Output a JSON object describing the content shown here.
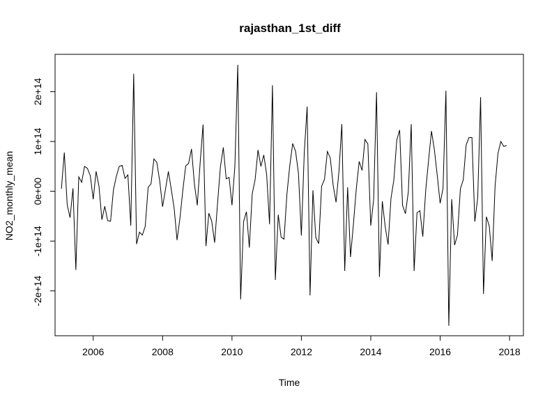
{
  "chart_data": {
    "type": "line",
    "title": "rajasthan_1st_diff",
    "xlabel": "Time",
    "ylabel": "NO2_monthly_mean",
    "xlim": [
      2004.9,
      2018.4
    ],
    "ylim": [
      -290000000000000.0,
      275000000000000.0
    ],
    "grid": false,
    "legend": "none",
    "x_ticks": [
      {
        "value": 2006,
        "label": "2006"
      },
      {
        "value": 2008,
        "label": "2008"
      },
      {
        "value": 2010,
        "label": "2010"
      },
      {
        "value": 2012,
        "label": "2012"
      },
      {
        "value": 2014,
        "label": "2014"
      },
      {
        "value": 2016,
        "label": "2016"
      },
      {
        "value": 2018,
        "label": "2018"
      }
    ],
    "y_ticks": [
      {
        "value": -200000000000000.0,
        "label": "-2e+14"
      },
      {
        "value": -100000000000000.0,
        "label": "-1e+14"
      },
      {
        "value": 0,
        "label": "0e+00"
      },
      {
        "value": 100000000000000.0,
        "label": "1e+14"
      },
      {
        "value": 200000000000000.0,
        "label": "2e+14"
      }
    ],
    "x_start": 2005.083,
    "x_step": 0.08333,
    "series": [
      {
        "color": "#000000",
        "values": [
          5000000000000.0,
          78000000000000.0,
          -27000000000000.0,
          -53000000000000.0,
          6000000000000.0,
          -158000000000000.0,
          29000000000000.0,
          18000000000000.0,
          50000000000000.0,
          46000000000000.0,
          31000000000000.0,
          -16000000000000.0,
          40000000000000.0,
          10000000000000.0,
          -57000000000000.0,
          -30000000000000.0,
          -59000000000000.0,
          -60000000000000.0,
          3000000000000.0,
          30000000000000.0,
          50000000000000.0,
          52000000000000.0,
          26000000000000.0,
          33000000000000.0,
          -69000000000000.0,
          236000000000000.0,
          -106000000000000.0,
          -82000000000000.0,
          -88000000000000.0,
          -70000000000000.0,
          8000000000000.0,
          15000000000000.0,
          65000000000000.0,
          58000000000000.0,
          21000000000000.0,
          -31000000000000.0,
          4000000000000.0,
          40000000000000.0,
          4000000000000.0,
          -34000000000000.0,
          -98000000000000.0,
          -54000000000000.0,
          2000000000000.0,
          51000000000000.0,
          56000000000000.0,
          85000000000000.0,
          15000000000000.0,
          -28000000000000.0,
          58000000000000.0,
          134000000000000.0,
          -110000000000000.0,
          -44000000000000.0,
          -60000000000000.0,
          -103000000000000.0,
          -25000000000000.0,
          49000000000000.0,
          88000000000000.0,
          25000000000000.0,
          28000000000000.0,
          -28000000000000.0,
          50000000000000.0,
          254000000000000.0,
          -217000000000000.0,
          -61000000000000.0,
          -41000000000000.0,
          -113000000000000.0,
          -5000000000000.0,
          23000000000000.0,
          83000000000000.0,
          50000000000000.0,
          73000000000000.0,
          33000000000000.0,
          -66000000000000.0,
          213000000000000.0,
          -178000000000000.0,
          -47000000000000.0,
          -92000000000000.0,
          -96000000000000.0,
          -6000000000000.0,
          52000000000000.0,
          96000000000000.0,
          80000000000000.0,
          36000000000000.0,
          -89000000000000.0,
          77000000000000.0,
          170000000000000.0,
          -209000000000000.0,
          2000000000000.0,
          -93000000000000.0,
          -105000000000000.0,
          10000000000000.0,
          24000000000000.0,
          80000000000000.0,
          67000000000000.0,
          12000000000000.0,
          -22000000000000.0,
          40000000000000.0,
          135000000000000.0,
          -160000000000000.0,
          8000000000000.0,
          -132000000000000.0,
          -66000000000000.0,
          5000000000000.0,
          60000000000000.0,
          42000000000000.0,
          104000000000000.0,
          95000000000000.0,
          -69000000000000.0,
          -17000000000000.0,
          199000000000000.0,
          -172000000000000.0,
          -20000000000000.0,
          -71000000000000.0,
          -107000000000000.0,
          -14000000000000.0,
          23000000000000.0,
          103000000000000.0,
          123000000000000.0,
          -28000000000000.0,
          -45000000000000.0,
          -1000000000000.0,
          135000000000000.0,
          -160000000000000.0,
          -43000000000000.0,
          -39000000000000.0,
          -91000000000000.0,
          1000000000000.0,
          62000000000000.0,
          121000000000000.0,
          84000000000000.0,
          32000000000000.0,
          -24000000000000.0,
          6000000000000.0,
          202000000000000.0,
          -270000000000000.0,
          -16000000000000.0,
          -108000000000000.0,
          -88000000000000.0,
          5000000000000.0,
          23000000000000.0,
          93000000000000.0,
          108000000000000.0,
          108000000000000.0,
          -61000000000000.0,
          -13000000000000.0,
          189000000000000.0,
          -206000000000000.0,
          -51000000000000.0,
          -70000000000000.0,
          -140000000000000.0,
          10000000000000.0,
          76000000000000.0,
          100000000000000.0,
          90000000000000.0,
          92000000000000.0
        ]
      }
    ]
  }
}
